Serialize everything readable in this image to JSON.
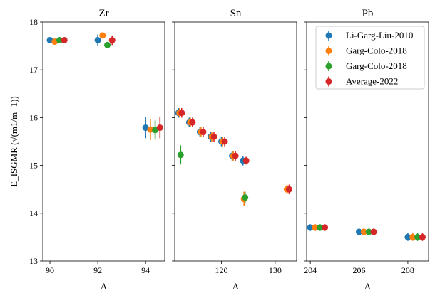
{
  "chart_data": [
    {
      "type": "scatter",
      "title": "Zr",
      "xlabel": "A",
      "ylabel": "E_ISGMR (√(m1/m−1))",
      "xlim": [
        89.7,
        94.8
      ],
      "ylim": [
        13,
        18
      ],
      "xticks": [
        90,
        92,
        94
      ],
      "yticks": [
        13,
        14,
        15,
        16,
        17,
        18
      ],
      "series": [
        {
          "name": "Li-Garg-Liu-2010",
          "color": "#1f77b4",
          "points": [
            {
              "x": 90,
              "y": 17.62,
              "err": 0.05
            },
            {
              "x": 92,
              "y": 17.62,
              "err": 0.12
            },
            {
              "x": 94,
              "y": 15.79,
              "err": 0.22
            }
          ]
        },
        {
          "name": "Garg-Colo-2018",
          "color": "#ff7f0e",
          "points": [
            {
              "x": 90.2,
              "y": 17.59,
              "err": 0.05
            },
            {
              "x": 92.2,
              "y": 17.72,
              "err": 0.05
            },
            {
              "x": 94.2,
              "y": 15.75,
              "err": 0.22
            }
          ]
        },
        {
          "name": "Garg-Colo-2018",
          "color": "#2ca02c",
          "points": [
            {
              "x": 90.4,
              "y": 17.62,
              "err": 0.05
            },
            {
              "x": 92.4,
              "y": 17.52,
              "err": 0.05
            },
            {
              "x": 94.4,
              "y": 15.74,
              "err": 0.2
            }
          ]
        },
        {
          "name": "Average-2022",
          "color": "#d62728",
          "points": [
            {
              "x": 90.6,
              "y": 17.62,
              "err": 0.05
            },
            {
              "x": 92.6,
              "y": 17.62,
              "err": 0.1
            },
            {
              "x": 94.6,
              "y": 15.79,
              "err": 0.22
            }
          ]
        }
      ]
    },
    {
      "type": "scatter",
      "title": "Sn",
      "xlabel": "A",
      "ylabel": "",
      "xlim": [
        111.3,
        134
      ],
      "ylim": [
        13,
        18
      ],
      "xticks": [
        120,
        130
      ],
      "yticks": [
        13,
        14,
        15,
        16,
        17,
        18
      ],
      "series": [
        {
          "name": "Li-Garg-Liu-2010",
          "color": "#1f77b4",
          "points": [
            {
              "x": 112,
              "y": 16.1,
              "err": 0.1
            },
            {
              "x": 114,
              "y": 15.9,
              "err": 0.1
            },
            {
              "x": 116,
              "y": 15.7,
              "err": 0.1
            },
            {
              "x": 118,
              "y": 15.6,
              "err": 0.1
            },
            {
              "x": 120,
              "y": 15.5,
              "err": 0.1
            },
            {
              "x": 122,
              "y": 15.2,
              "err": 0.1
            },
            {
              "x": 124,
              "y": 15.1,
              "err": 0.1
            }
          ]
        },
        {
          "name": "Garg-Colo-2018",
          "color": "#ff7f0e",
          "points": [
            {
              "x": 112.2,
              "y": 16.1,
              "err": 0.1
            },
            {
              "x": 114.2,
              "y": 15.9,
              "err": 0.1
            },
            {
              "x": 116.2,
              "y": 15.7,
              "err": 0.1
            },
            {
              "x": 118.2,
              "y": 15.6,
              "err": 0.1
            },
            {
              "x": 120.2,
              "y": 15.5,
              "err": 0.1
            },
            {
              "x": 122.2,
              "y": 15.2,
              "err": 0.1
            },
            {
              "x": 124.2,
              "y": 14.3,
              "err": 0.15
            },
            {
              "x": 132.2,
              "y": 14.5,
              "err": 0.1
            }
          ]
        },
        {
          "name": "Garg-Colo-2018",
          "color": "#2ca02c",
          "points": [
            {
              "x": 112.4,
              "y": 15.22,
              "err": 0.2
            },
            {
              "x": 124.4,
              "y": 14.33,
              "err": 0.12
            }
          ]
        },
        {
          "name": "Average-2022",
          "color": "#d62728",
          "points": [
            {
              "x": 112.6,
              "y": 16.1,
              "err": 0.1
            },
            {
              "x": 114.6,
              "y": 15.9,
              "err": 0.1
            },
            {
              "x": 116.6,
              "y": 15.7,
              "err": 0.1
            },
            {
              "x": 118.6,
              "y": 15.6,
              "err": 0.1
            },
            {
              "x": 120.6,
              "y": 15.5,
              "err": 0.1
            },
            {
              "x": 122.6,
              "y": 15.2,
              "err": 0.1
            },
            {
              "x": 124.6,
              "y": 15.1,
              "err": 0.08
            },
            {
              "x": 132.6,
              "y": 14.5,
              "err": 0.1
            }
          ]
        }
      ]
    },
    {
      "type": "scatter",
      "title": "Pb",
      "xlabel": "A",
      "ylabel": "",
      "xlim": [
        203.85,
        208.85
      ],
      "ylim": [
        13,
        18
      ],
      "xticks": [
        204,
        206,
        208
      ],
      "yticks": [
        13,
        14,
        15,
        16,
        17,
        18
      ],
      "series": [
        {
          "name": "Li-Garg-Liu-2010",
          "color": "#1f77b4",
          "points": [
            {
              "x": 204,
              "y": 13.7,
              "err": 0.07
            },
            {
              "x": 206,
              "y": 13.61,
              "err": 0.07
            },
            {
              "x": 208,
              "y": 13.5,
              "err": 0.08
            }
          ]
        },
        {
          "name": "Garg-Colo-2018",
          "color": "#ff7f0e",
          "points": [
            {
              "x": 204.2,
              "y": 13.7,
              "err": 0.07
            },
            {
              "x": 206.2,
              "y": 13.61,
              "err": 0.07
            },
            {
              "x": 208.2,
              "y": 13.5,
              "err": 0.08
            }
          ]
        },
        {
          "name": "Garg-Colo-2018",
          "color": "#2ca02c",
          "points": [
            {
              "x": 204.4,
              "y": 13.7,
              "err": 0.07
            },
            {
              "x": 206.4,
              "y": 13.61,
              "err": 0.07
            },
            {
              "x": 208.4,
              "y": 13.5,
              "err": 0.08
            }
          ]
        },
        {
          "name": "Average-2022",
          "color": "#d62728",
          "points": [
            {
              "x": 204.6,
              "y": 13.7,
              "err": 0.07
            },
            {
              "x": 206.6,
              "y": 13.61,
              "err": 0.07
            },
            {
              "x": 208.6,
              "y": 13.5,
              "err": 0.08
            }
          ]
        }
      ],
      "legend": {
        "placement": "upper-right",
        "entries": [
          {
            "label": "Li-Garg-Liu-2010",
            "color": "#1f77b4"
          },
          {
            "label": "Garg-Colo-2018",
            "color": "#ff7f0e"
          },
          {
            "label": "Garg-Colo-2018",
            "color": "#2ca02c"
          },
          {
            "label": "Average-2022",
            "color": "#d62728"
          }
        ]
      }
    }
  ]
}
